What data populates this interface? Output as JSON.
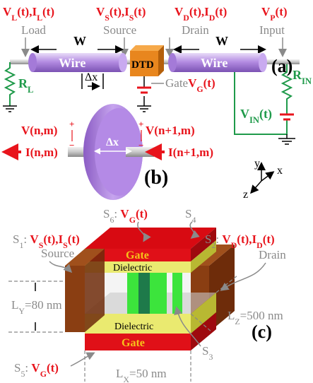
{
  "panel_a": {
    "label": "(a)",
    "load_signal": [
      "V",
      "L",
      "(t),I",
      "L",
      "(t)"
    ],
    "source_signal": [
      "V",
      "S",
      "(t),I",
      "S",
      "(t)"
    ],
    "drain_signal": [
      "V",
      "D",
      "(t),I",
      "D",
      "(t)"
    ],
    "input_signal": [
      "V",
      "P",
      "(t)"
    ],
    "ports": [
      "Load",
      "Source",
      "Drain",
      "Input"
    ],
    "widths": [
      "W",
      "W"
    ],
    "wires": [
      "Wire",
      "Wire"
    ],
    "device": "DTD",
    "segment": "Δx",
    "gate_name": "Gate",
    "gate_signal": [
      "V",
      "G",
      "(t)"
    ],
    "load_resistor": [
      "R",
      "L"
    ],
    "input_resistor": [
      "R",
      "IN"
    ],
    "input_source": [
      "V",
      "IN",
      "(t)"
    ]
  },
  "panel_b": {
    "label": "(b)",
    "segment": "Δx",
    "left_voltage": "V(n,m)",
    "right_voltage": "V(n+1,m)",
    "left_current": "I(n,m)",
    "right_current": "I(n+1,m)",
    "signs": [
      "+",
      "−",
      "+",
      "−"
    ],
    "axes": [
      "y",
      "x",
      "z"
    ]
  },
  "panel_c": {
    "label": "(c)",
    "s1": {
      "name": [
        "S",
        "1",
        ": "
      ],
      "signal": [
        "V",
        "S",
        "(t),I",
        "S",
        "(t)"
      ]
    },
    "s2": {
      "name": [
        "S",
        "2",
        ": "
      ],
      "signal": [
        "V",
        "D",
        "(t),I",
        "D",
        "(t)"
      ]
    },
    "s3": [
      "S",
      "3"
    ],
    "s4": [
      "S",
      "4"
    ],
    "s5": {
      "name": [
        "S",
        "5",
        ": "
      ],
      "signal": [
        "V",
        "G",
        "(t)"
      ]
    },
    "s6": {
      "name": [
        "S",
        "6",
        ": "
      ],
      "signal": [
        "V",
        "G",
        "(t)"
      ]
    },
    "source": "Source",
    "drain": "Drain",
    "gates": [
      "Gate",
      "Gate"
    ],
    "dielectrics": [
      "Dielectric",
      "Dielectric"
    ],
    "ly": [
      "L",
      "Y",
      "=80 nm"
    ],
    "lz": [
      "L",
      "Z",
      "=500 nm"
    ],
    "lx": [
      "L",
      "X",
      "=50 nm"
    ]
  }
}
